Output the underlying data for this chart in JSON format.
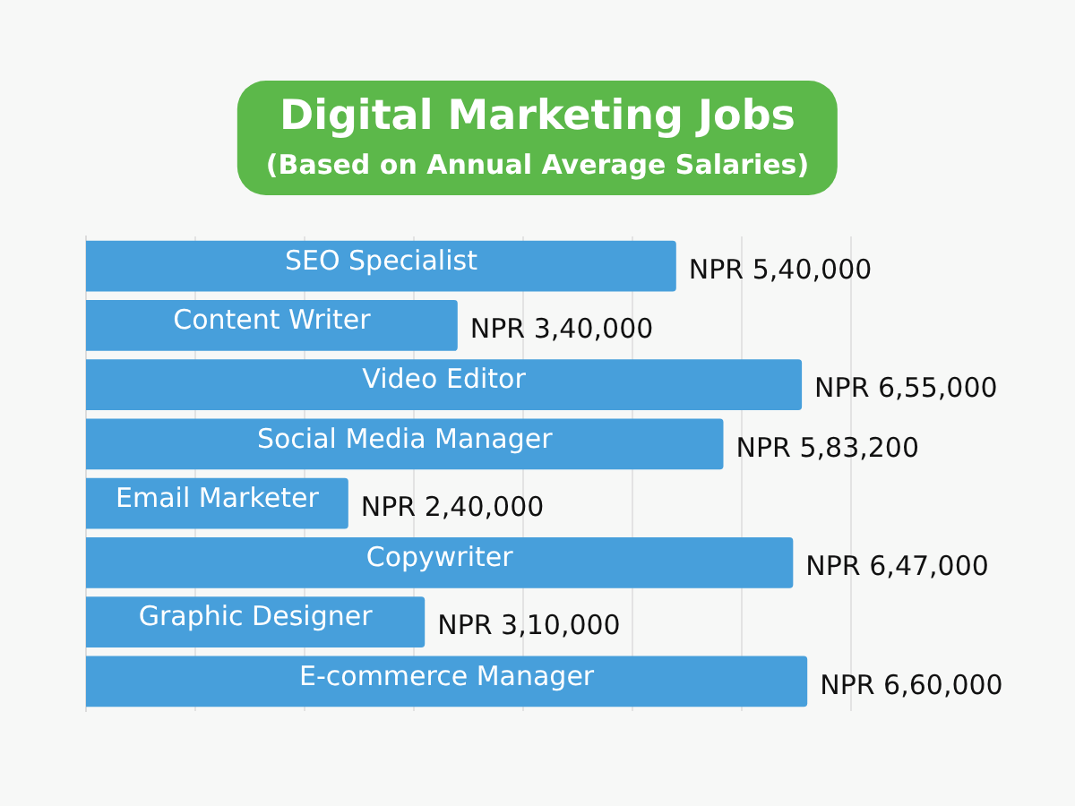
{
  "chart_data": {
    "type": "bar",
    "orientation": "horizontal",
    "title": "Digital Marketing Jobs",
    "subtitle": "(Based on Annual Average Salaries)",
    "categories": [
      "SEO Specialist",
      "Content Writer",
      "Video Editor",
      "Social Media Manager",
      "Email Marketer",
      "Copywriter",
      "Graphic Designer",
      "E-commerce Manager"
    ],
    "values": [
      540000,
      340000,
      655000,
      583200,
      240000,
      647000,
      310000,
      660000
    ],
    "value_labels": [
      "NPR 5,40,000",
      "NPR 3,40,000",
      "NPR 6,55,000",
      "NPR 5,83,200",
      "NPR 2,40,000",
      "NPR 6,47,000",
      "NPR 3,10,000",
      "NPR 6,60,000"
    ],
    "color": "#479fdb",
    "xlim": [
      0,
      700000
    ],
    "xticks": [
      {
        "value": 100000,
        "label": null
      },
      {
        "value": 200000,
        "label": null
      },
      {
        "value": 300000,
        "label": null
      },
      {
        "value": 400000,
        "label": null
      },
      {
        "value": 500000,
        "label": null
      },
      {
        "value": 600000,
        "label": null
      },
      {
        "value": 700000,
        "label": null
      }
    ],
    "grid": "x"
  }
}
